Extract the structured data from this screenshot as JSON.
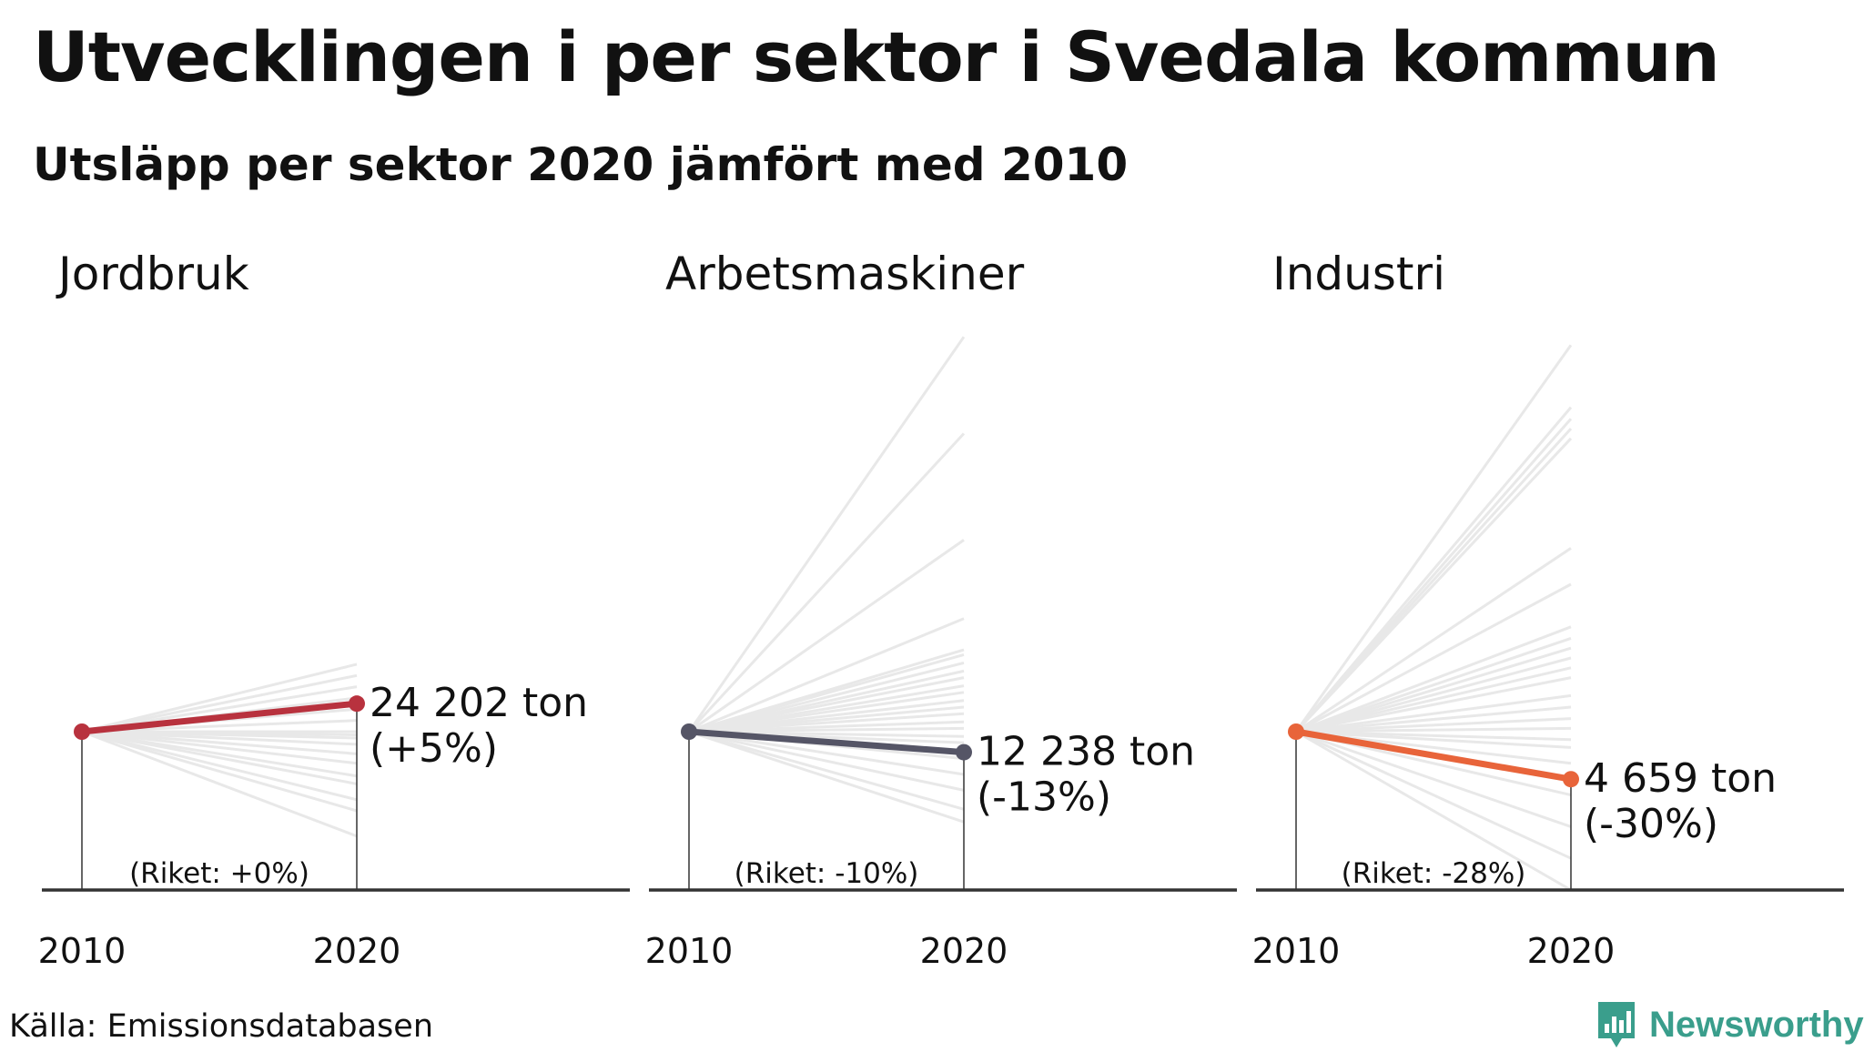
{
  "title": "Utvecklingen i per sektor i Svedala kommun",
  "subtitle": "Utsläpp per sektor 2020 jämfört med 2010",
  "source": "Källa: Emissionsdatabasen",
  "brand": "Newsworthy",
  "colors": {
    "bg_lines": "#e8e8e8",
    "axis": "#333333",
    "brand": "#3a9e8c"
  },
  "chart_data": [
    {
      "type": "line",
      "title": "Jordbruk",
      "x": [
        "2010",
        "2020"
      ],
      "ylim": [
        -100,
        70
      ],
      "highlight": {
        "color": "#b8323e",
        "change_pct": 5,
        "value_label": "24 202 ton",
        "change_label": "(+5%)"
      },
      "national_label": "(Riket: +0%)",
      "comparison_changes_pct": [
        12,
        10,
        8,
        6,
        4,
        2,
        0,
        -2,
        -4,
        -8,
        -14,
        -20,
        -28,
        -33,
        -43,
        -50,
        -66
      ]
    },
    {
      "type": "line",
      "title": "Arbetsmaskiner",
      "x": [
        "2010",
        "2020"
      ],
      "ylim": [
        -100,
        240
      ],
      "highlight": {
        "color": "#555566",
        "change_pct": -13,
        "value_label": "12 238 ton",
        "change_label": "(-13%)"
      },
      "national_label": "(Riket: -10%)",
      "comparison_changes_pct": [
        241,
        182,
        117,
        69,
        50,
        47,
        42,
        37,
        33,
        28,
        24,
        19,
        15,
        11,
        6,
        2,
        -3,
        -7,
        -17,
        -27,
        -37,
        -49,
        -57
      ]
    },
    {
      "type": "line",
      "title": "Industri",
      "x": [
        "2010",
        "2020"
      ],
      "ylim": [
        -100,
        240
      ],
      "highlight": {
        "color": "#e8643a",
        "change_pct": -30,
        "value_label": "4 659 ton",
        "change_label": "(-30%)"
      },
      "national_label": "(Riket: -28%)",
      "comparison_changes_pct": [
        236,
        198,
        191,
        185,
        179,
        112,
        90,
        64,
        57,
        51,
        45,
        39,
        33,
        22,
        15,
        8,
        2,
        -5,
        -10,
        -20,
        -40,
        -60,
        -80,
        -100
      ]
    }
  ]
}
